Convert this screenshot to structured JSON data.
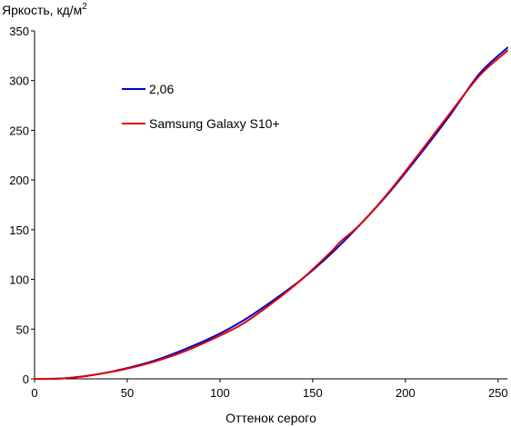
{
  "chart_data": {
    "type": "line",
    "title": "",
    "ylabel": "Яркость, кд/м",
    "ylabel_superscript": "2",
    "xlabel": "Оттенок серого",
    "xlim": [
      0,
      255
    ],
    "ylim": [
      0,
      350
    ],
    "xticks": [
      0,
      50,
      100,
      150,
      200,
      250
    ],
    "yticks": [
      0,
      50,
      100,
      150,
      200,
      250,
      300,
      350
    ],
    "grid": false,
    "legend_position": "top-left",
    "series": [
      {
        "name": "2,06",
        "color": "#0000cc",
        "x": [
          0,
          16,
          32,
          48,
          64,
          80,
          96,
          112,
          128,
          144,
          160,
          176,
          192,
          208,
          224,
          240,
          255
        ],
        "y": [
          0,
          0.6,
          4,
          10,
          18,
          29,
          42,
          58,
          78,
          100,
          126,
          156,
          189,
          226,
          265,
          307,
          333
        ]
      },
      {
        "name": "Samsung Galaxy S10+",
        "color": "#e00000",
        "x": [
          0,
          16,
          32,
          48,
          64,
          80,
          96,
          112,
          128,
          144,
          160,
          165,
          176,
          192,
          208,
          224,
          240,
          255
        ],
        "y": [
          0,
          0.5,
          4,
          9.5,
          17,
          27,
          40,
          55,
          76,
          100,
          128,
          138,
          156,
          190,
          228,
          267,
          305,
          330
        ]
      }
    ]
  }
}
